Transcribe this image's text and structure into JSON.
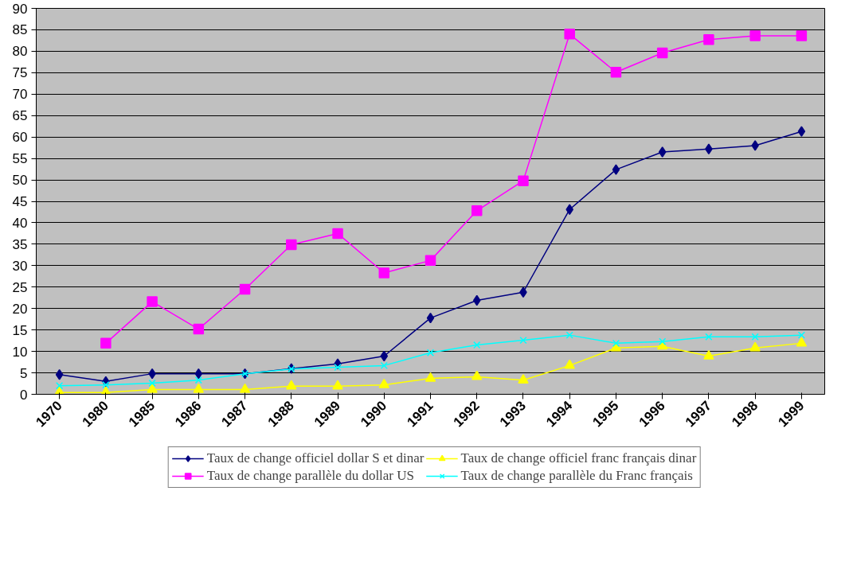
{
  "chart_data": {
    "type": "line",
    "categories": [
      "1970",
      "1980",
      "1985",
      "1986",
      "1987",
      "1988",
      "1989",
      "1990",
      "1991",
      "1992",
      "1993",
      "1994",
      "1995",
      "1996",
      "1997",
      "1998",
      "1999"
    ],
    "series": [
      {
        "name": "Taux de change officiel dollar S et dinar",
        "color": "#000080",
        "marker": "diamond",
        "values": [
          4.6,
          3,
          4.8,
          4.8,
          4.8,
          6,
          7.1,
          8.9,
          17.8,
          21.9,
          23.8,
          43.1,
          52.4,
          56.5,
          57.2,
          58,
          61.3
        ]
      },
      {
        "name": "Taux de change parallèle du dollar US",
        "color": "#ff00ff",
        "marker": "square",
        "values": [
          null,
          11.9,
          21.6,
          15.2,
          24.5,
          34.9,
          37.5,
          28.3,
          31.2,
          42.8,
          49.8,
          84,
          75.1,
          79.6,
          82.7,
          83.6,
          83.6
        ]
      },
      {
        "name": "Taux de change officiel franc français dinar",
        "color": "#ffff00",
        "marker": "triangle",
        "values": [
          0.4,
          0.4,
          1.1,
          1.1,
          1.1,
          1.9,
          1.9,
          2.2,
          3.7,
          4.1,
          3.3,
          6.7,
          10.8,
          11.2,
          8.9,
          10.8,
          11.9
        ]
      },
      {
        "name": "Taux de change parallèle du Franc français",
        "color": "#00ffff",
        "marker": "cross",
        "values": [
          2,
          2.2,
          2.6,
          3.3,
          4.8,
          5.9,
          6.3,
          6.7,
          9.7,
          11.5,
          12.6,
          13.8,
          11.9,
          12.3,
          13.4,
          13.4,
          13.8
        ]
      }
    ],
    "ylim": [
      0,
      90
    ],
    "yticks": [
      0,
      5,
      10,
      15,
      20,
      25,
      30,
      35,
      40,
      45,
      50,
      55,
      60,
      65,
      70,
      75,
      80,
      85,
      90
    ],
    "grid": "y",
    "legend": "bottom",
    "line_style": "solid"
  }
}
